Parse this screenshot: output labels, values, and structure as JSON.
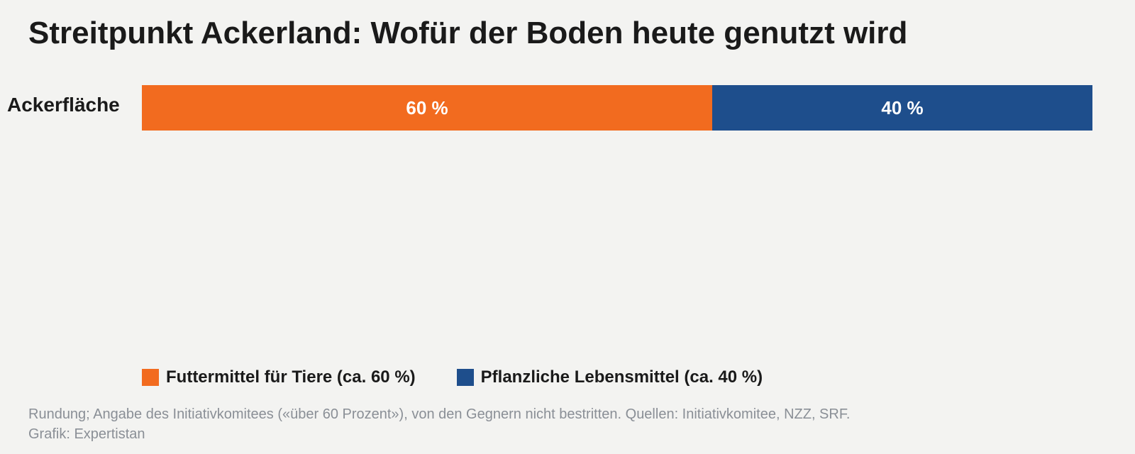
{
  "page": {
    "title": "Streitpunkt Ackerland: Wofür der Boden heute genutzt wird",
    "background": "#f3f3f1"
  },
  "chart_data": {
    "type": "bar",
    "orientation": "horizontal",
    "stacked": true,
    "normalized": true,
    "title": "Streitpunkt Ackerland: Wofür der Boden heute genutzt wird",
    "categories": [
      "Ackerfläche"
    ],
    "series": [
      {
        "name": "Futtermittel für Tiere (ca. 60 %)",
        "values": [
          60
        ],
        "label": "60 %",
        "color": "#f26b1f"
      },
      {
        "name": "Pflanzliche Lebensmittel (ca. 40 %)",
        "values": [
          40
        ],
        "label": "40 %",
        "color": "#1e4e8c"
      }
    ],
    "unit": "%",
    "xlim": [
      0,
      100
    ],
    "grid": false,
    "legend_position": "bottom-left"
  },
  "footnote": {
    "line1": "Rundung; Angabe des Initiativkomitees («über 60 Prozent»), von den Gegnern nicht bestritten. Quellen: Initiativkomitee, NZZ, SRF.",
    "line2": "Grafik: Expertistan"
  }
}
